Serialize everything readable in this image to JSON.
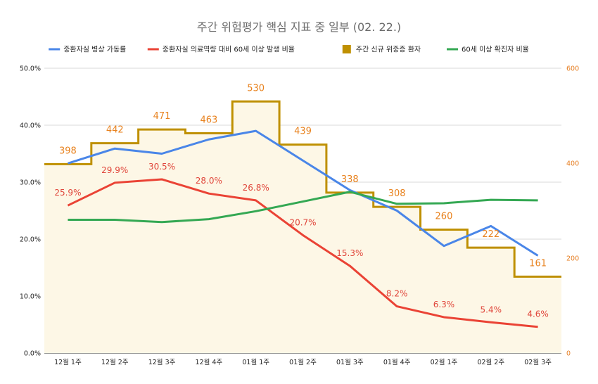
{
  "chart_data": {
    "type": "line",
    "title": "주간 위험평가 핵심 지표 중 일부 (02. 22.)",
    "categories": [
      "12월 1주",
      "12월 2주",
      "12월 3주",
      "12월 4주",
      "01월 1주",
      "01월 2주",
      "01월 3주",
      "01월 4주",
      "02월 1주",
      "02월 2주",
      "02월 3주"
    ],
    "left_axis": {
      "ylim": [
        0,
        50
      ],
      "ticks": [
        "0.0%",
        "10.0%",
        "20.0%",
        "30.0%",
        "40.0%",
        "50.0%"
      ],
      "grid": true
    },
    "right_axis": {
      "ylim": [
        0,
        600
      ],
      "ticks": [
        "0",
        "200",
        "400",
        "600"
      ]
    },
    "legend_position": "top",
    "series": [
      {
        "name": "중환자실 병상 가동률",
        "color": "#4a86e8",
        "axis": "left",
        "style": "line",
        "values": [
          33.3,
          35.9,
          35.0,
          37.5,
          39.0,
          33.8,
          28.6,
          25.0,
          18.8,
          22.3,
          17.1
        ]
      },
      {
        "name": "중환자실 의료역량 대비 60세 이상 발생 비율",
        "color": "#ea4335",
        "axis": "left",
        "style": "line",
        "values": [
          25.9,
          29.9,
          30.5,
          28.0,
          26.8,
          20.7,
          15.3,
          8.2,
          6.3,
          5.4,
          4.6
        ],
        "labels": [
          "25.9%",
          "29.9%",
          "30.5%",
          "28.0%",
          "26.8%",
          "20.7%",
          "15.3%",
          "8.2%",
          "6.3%",
          "5.4%",
          "4.6%"
        ]
      },
      {
        "name": "주간 신규 위중증 환자",
        "color": "#bf9000",
        "axis": "right",
        "style": "stepped-area",
        "values": [
          398,
          442,
          471,
          463,
          530,
          439,
          338,
          308,
          260,
          222,
          161
        ],
        "labels": [
          "398",
          "442",
          "471",
          "463",
          "530",
          "439",
          "338",
          "308",
          "260",
          "222",
          "161"
        ]
      },
      {
        "name": "60세 이상 확진자 비율",
        "color": "#34a853",
        "axis": "left",
        "style": "line",
        "values": [
          23.4,
          23.4,
          23.0,
          23.5,
          24.9,
          26.6,
          28.3,
          26.2,
          26.3,
          26.9,
          26.8
        ]
      }
    ]
  }
}
